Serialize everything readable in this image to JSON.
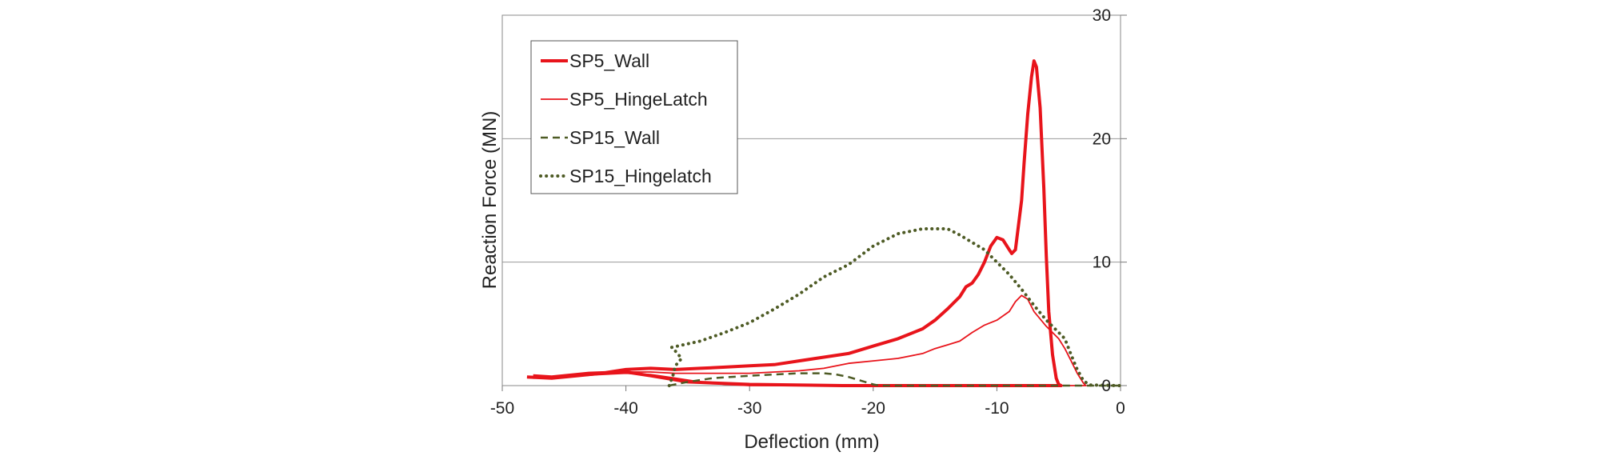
{
  "chart_data": {
    "type": "line",
    "title": "",
    "xlabel": "Deflection (mm)",
    "ylabel": "Reaction Force (MN)",
    "xlim": [
      -50,
      0
    ],
    "ylim": [
      0,
      30
    ],
    "x_ticks": [
      -50,
      -40,
      -30,
      -20,
      -10,
      0
    ],
    "y_ticks": [
      0,
      10,
      20,
      30
    ],
    "y_axis_side": "right",
    "grid": "horizontal",
    "legend_position": "top-left",
    "series": [
      {
        "name": "SP5_Wall",
        "color": "#e8141b",
        "style": "solid-thick",
        "points": [
          [
            -48,
            0.7
          ],
          [
            -46,
            0.6
          ],
          [
            -44,
            0.8
          ],
          [
            -42,
            1.0
          ],
          [
            -40,
            1.3
          ],
          [
            -38,
            1.4
          ],
          [
            -36,
            1.3
          ],
          [
            -34,
            1.4
          ],
          [
            -32,
            1.5
          ],
          [
            -30,
            1.6
          ],
          [
            -28,
            1.7
          ],
          [
            -26,
            2.0
          ],
          [
            -24,
            2.3
          ],
          [
            -22,
            2.6
          ],
          [
            -20,
            3.2
          ],
          [
            -18,
            3.8
          ],
          [
            -16,
            4.6
          ],
          [
            -15,
            5.3
          ],
          [
            -14,
            6.2
          ],
          [
            -13,
            7.2
          ],
          [
            -12.5,
            8.0
          ],
          [
            -12,
            8.3
          ],
          [
            -11.5,
            9.0
          ],
          [
            -11,
            10.0
          ],
          [
            -10.5,
            11.3
          ],
          [
            -10,
            12.0
          ],
          [
            -9.5,
            11.8
          ],
          [
            -9,
            11.0
          ],
          [
            -8.8,
            10.7
          ],
          [
            -8.5,
            11.0
          ],
          [
            -8,
            15.0
          ],
          [
            -7.8,
            18.0
          ],
          [
            -7.5,
            22.0
          ],
          [
            -7.2,
            25.0
          ],
          [
            -7,
            26.3
          ],
          [
            -6.8,
            25.8
          ],
          [
            -6.5,
            22.5
          ],
          [
            -6.2,
            16.0
          ],
          [
            -6,
            10.5
          ],
          [
            -5.8,
            6.0
          ],
          [
            -5.5,
            2.5
          ],
          [
            -5.2,
            0.6
          ],
          [
            -5,
            0.1
          ],
          [
            -4.8,
            0
          ],
          [
            -10,
            0
          ],
          [
            -20,
            0
          ],
          [
            -22.5,
            0
          ],
          [
            -30,
            0.1
          ],
          [
            -35,
            0.3
          ],
          [
            -38,
            0.8
          ],
          [
            -40,
            1.1
          ],
          [
            -43,
            1.0
          ],
          [
            -46,
            0.7
          ],
          [
            -47.5,
            0.8
          ]
        ]
      },
      {
        "name": "SP5_HingeLatch",
        "color": "#e8141b",
        "style": "solid-thin",
        "points": [
          [
            -47.5,
            0.6
          ],
          [
            -45,
            0.7
          ],
          [
            -42,
            0.9
          ],
          [
            -40,
            1.1
          ],
          [
            -38,
            1.1
          ],
          [
            -36,
            1.0
          ],
          [
            -34,
            1.0
          ],
          [
            -32,
            1.0
          ],
          [
            -30,
            1.0
          ],
          [
            -28,
            1.1
          ],
          [
            -26,
            1.2
          ],
          [
            -24,
            1.4
          ],
          [
            -22,
            1.8
          ],
          [
            -20,
            2.0
          ],
          [
            -18,
            2.2
          ],
          [
            -16,
            2.6
          ],
          [
            -15,
            3.0
          ],
          [
            -14,
            3.3
          ],
          [
            -13,
            3.6
          ],
          [
            -12,
            4.3
          ],
          [
            -11,
            4.9
          ],
          [
            -10,
            5.3
          ],
          [
            -9,
            6.0
          ],
          [
            -8.5,
            6.8
          ],
          [
            -8,
            7.3
          ],
          [
            -7.5,
            7.0
          ],
          [
            -7,
            6.0
          ],
          [
            -6,
            4.8
          ],
          [
            -5,
            3.8
          ],
          [
            -4.5,
            3.0
          ],
          [
            -4,
            2.0
          ],
          [
            -3.5,
            1.0
          ],
          [
            -3,
            0.2
          ],
          [
            -2.8,
            0
          ],
          [
            -10,
            0
          ],
          [
            -20,
            0
          ],
          [
            -30,
            0
          ],
          [
            -32,
            0.1
          ],
          [
            -34,
            0.3
          ],
          [
            -36,
            0.6
          ],
          [
            -38,
            0.9
          ],
          [
            -40,
            1.0
          ],
          [
            -44,
            0.8
          ],
          [
            -47.5,
            0.6
          ]
        ]
      },
      {
        "name": "SP15_Wall",
        "color": "#4e5b25",
        "style": "dashed",
        "points": [
          [
            -36.5,
            0
          ],
          [
            -35,
            0.3
          ],
          [
            -33,
            0.6
          ],
          [
            -30,
            0.8
          ],
          [
            -28,
            0.9
          ],
          [
            -26,
            1.0
          ],
          [
            -24,
            1.0
          ],
          [
            -23,
            0.9
          ],
          [
            -22,
            0.7
          ],
          [
            -21,
            0.4
          ],
          [
            -20,
            0.1
          ],
          [
            -19.5,
            0
          ],
          [
            -10,
            0
          ],
          [
            0,
            0
          ]
        ]
      },
      {
        "name": "SP15_Hingelatch",
        "color": "#4e5b25",
        "style": "dotted",
        "points": [
          [
            -36.5,
            0
          ],
          [
            -36.2,
            0.8
          ],
          [
            -36,
            1.6
          ],
          [
            -35.5,
            2.2
          ],
          [
            -36,
            2.8
          ],
          [
            -36.3,
            3.1
          ],
          [
            -34,
            3.6
          ],
          [
            -32,
            4.3
          ],
          [
            -30,
            5.1
          ],
          [
            -28,
            6.2
          ],
          [
            -26,
            7.4
          ],
          [
            -24,
            8.8
          ],
          [
            -22,
            9.8
          ],
          [
            -20,
            11.3
          ],
          [
            -18,
            12.3
          ],
          [
            -16,
            12.7
          ],
          [
            -14,
            12.7
          ],
          [
            -13,
            12.2
          ],
          [
            -12,
            11.6
          ],
          [
            -11,
            11.0
          ],
          [
            -10,
            10.0
          ],
          [
            -9,
            9.0
          ],
          [
            -8,
            7.8
          ],
          [
            -7,
            6.5
          ],
          [
            -6,
            5.3
          ],
          [
            -5,
            4.3
          ],
          [
            -4.5,
            3.8
          ],
          [
            -4,
            2.5
          ],
          [
            -3.5,
            1.3
          ],
          [
            -3,
            0.4
          ],
          [
            -2.5,
            0.05
          ],
          [
            0,
            0
          ]
        ]
      }
    ]
  }
}
